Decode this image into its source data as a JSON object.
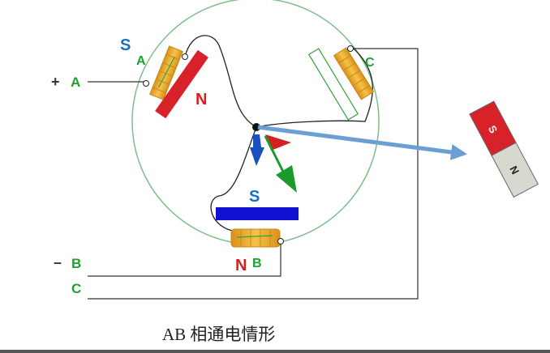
{
  "caption": "AB 相通电情形",
  "terminals": {
    "a_sign": "+",
    "a_label": "A",
    "b_sign": "–",
    "b_label": "B",
    "c_label": "C"
  },
  "coils": {
    "a_label": "A",
    "b_label": "B",
    "c_label": "C"
  },
  "poles": {
    "a_south": "S",
    "a_north": "N",
    "b_south": "S",
    "b_north": "N"
  },
  "rotor_magnet": {
    "south": "S",
    "north": "N"
  },
  "colors": {
    "label_green": "#1fa12e",
    "pole_blue": "#1a6fc4",
    "pole_red": "#d42020",
    "ring": "#7bbf8b",
    "coil": "#f0b030",
    "magnet_red": "#d8222a",
    "magnet_blue": "#1010d0",
    "arrow_blue": "#6a9fd4"
  }
}
